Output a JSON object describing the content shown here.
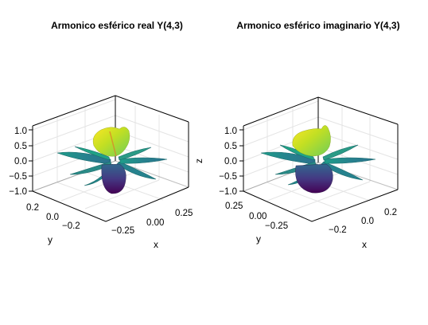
{
  "chart_data": [
    {
      "type": "surface3d",
      "title": "Armonico esférico real Y(4,3)",
      "xlabel": "x",
      "ylabel": "y",
      "zlabel": "",
      "x_ticks": [
        "0.25",
        "0.00",
        "−0.25"
      ],
      "y_ticks": [
        "0.2",
        "0.0",
        "−0.2"
      ],
      "z_ticks": [
        "1.0",
        "0.5",
        "0.0",
        "−0.5",
        "−1.0"
      ],
      "colormap": "viridis",
      "grid": true
    },
    {
      "type": "surface3d",
      "title": "Armonico esférico imaginario Y(4,3)",
      "xlabel": "x",
      "ylabel": "y",
      "zlabel": "z",
      "x_ticks": [
        "0.2",
        "0.0",
        "−0.2"
      ],
      "y_ticks": [
        "0.25",
        "0.00",
        "−0.25"
      ],
      "z_ticks": [
        "1.0",
        "0.5",
        "0.0",
        "−0.5",
        "−1.0"
      ],
      "colormap": "viridis",
      "grid": true
    }
  ]
}
